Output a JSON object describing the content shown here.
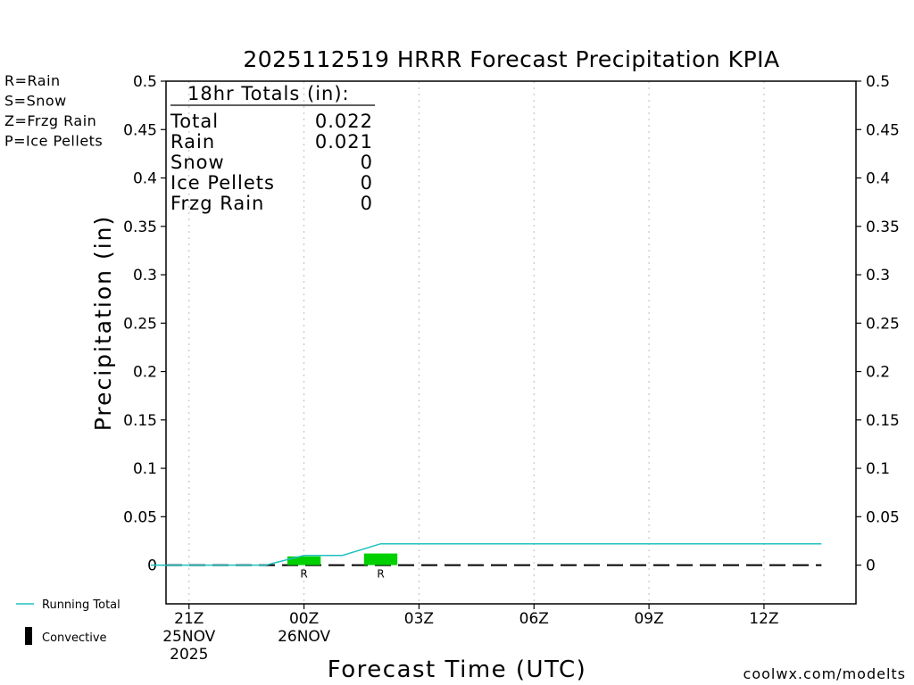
{
  "chart_data": {
    "type": "bar",
    "title": "2025112519 HRRR Forecast Precipitation KPIA",
    "xlabel": "Forecast Time (UTC)",
    "ylabel": "Precipitation (in)",
    "ylim": [
      -0.04,
      0.5
    ],
    "xlim_hours": [
      -3.6,
      14.4
    ],
    "y_ticks": [
      "0.5",
      "0.45",
      "0.4",
      "0.35",
      "0.3",
      "0.25",
      "0.2",
      "0.15",
      "0.1",
      "0.05",
      "0"
    ],
    "y_tick_values": [
      0.5,
      0.45,
      0.4,
      0.35,
      0.3,
      0.25,
      0.2,
      0.15,
      0.1,
      0.05,
      0
    ],
    "x_ticks": [
      {
        "hour": -3,
        "lines": [
          "21Z",
          "25NOV",
          "2025"
        ]
      },
      {
        "hour": 0,
        "lines": [
          "00Z",
          "26NOV"
        ]
      },
      {
        "hour": 3,
        "lines": [
          "03Z"
        ]
      },
      {
        "hour": 6,
        "lines": [
          "06Z"
        ]
      },
      {
        "hour": 9,
        "lines": [
          "09Z"
        ]
      },
      {
        "hour": 12,
        "lines": [
          "12Z"
        ]
      }
    ],
    "bars": [
      {
        "hour": 0,
        "value": 0.009,
        "type_label": "R"
      },
      {
        "hour": 2,
        "value": 0.012,
        "type_label": "R"
      }
    ],
    "running_total": {
      "hours": [
        -4,
        -1,
        0,
        1,
        2,
        13.5
      ],
      "values": [
        0,
        0,
        0.01,
        0.01,
        0.022,
        0.022
      ]
    },
    "convective": {
      "hours_start": -3.6,
      "hours_end": 13.5,
      "value": 0
    },
    "legend_types": [
      {
        "text": "R=Rain",
        "color": "#22dd22"
      },
      {
        "text": "S=Snow",
        "color": "#3355ee"
      },
      {
        "text": "Z=Frzg Rain",
        "color": "#f08a3a"
      },
      {
        "text": "P=Ice Pellets",
        "color": "#e0208a"
      }
    ],
    "legend_lines": {
      "running_total": "Running Total",
      "convective": "Convective"
    },
    "totals": {
      "heading": "18hr Totals (in):",
      "rows": [
        {
          "label": "Total",
          "value": "0.022"
        },
        {
          "label": "Rain",
          "value": "0.021"
        },
        {
          "label": "Snow",
          "value": "0"
        },
        {
          "label": "Ice Pellets",
          "value": "0"
        },
        {
          "label": "Frzg Rain",
          "value": "0"
        }
      ]
    },
    "credit": "coolwx.com/modelts",
    "colors": {
      "rain_bar": "#00d000",
      "running_total": "#20c0c0",
      "credit": "#e02020",
      "axis": "#000000",
      "grid": "#bbbbbb"
    }
  }
}
